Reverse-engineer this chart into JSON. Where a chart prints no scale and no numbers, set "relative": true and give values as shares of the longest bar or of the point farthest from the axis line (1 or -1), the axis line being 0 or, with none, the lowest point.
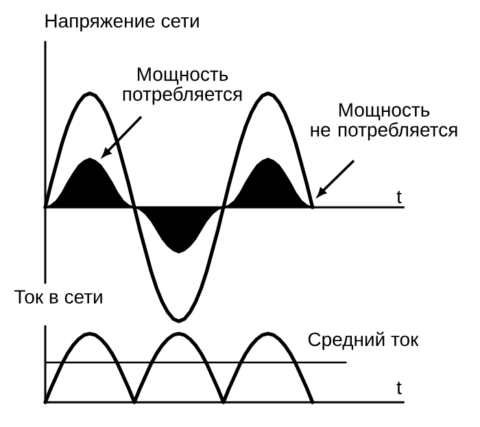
{
  "chart_data": [
    {
      "type": "line",
      "relative": true,
      "ylabel": "Напряжение сети",
      "xlabel": "t",
      "marker": "none",
      "categories": [
        null,
        null,
        null,
        null,
        null,
        null,
        null,
        null,
        null,
        null,
        null,
        null,
        null,
        null,
        null,
        null,
        null,
        null,
        null,
        null,
        null,
        null,
        null,
        null,
        null,
        null,
        null,
        null,
        null,
        null,
        null,
        null,
        null,
        null,
        null,
        null,
        null,
        null,
        null,
        null,
        null,
        null,
        null,
        null,
        null,
        null,
        null,
        null,
        null,
        null,
        null,
        null,
        null,
        null,
        null,
        null,
        null,
        null,
        null,
        null,
        null,
        null,
        null,
        null,
        null
      ],
      "series": [
        {
          "color": "#000000",
          "values": [
            0,
            0.2,
            0.38,
            0.56,
            0.71,
            0.83,
            0.92,
            0.98,
            1,
            0.98,
            0.92,
            0.83,
            0.71,
            0.56,
            0.38,
            0.2,
            0,
            -0.2,
            -0.38,
            -0.56,
            -0.71,
            -0.83,
            -0.92,
            -0.98,
            -1,
            -0.98,
            -0.92,
            -0.83,
            -0.71,
            -0.56,
            -0.38,
            -0.2,
            0,
            0.2,
            0.38,
            0.56,
            0.71,
            0.83,
            0.92,
            0.98,
            1,
            0.98,
            0.92,
            0.83,
            0.71,
            0.56,
            0.38,
            0.2,
            0,
            null,
            null,
            null,
            null,
            null,
            null,
            null,
            null,
            null,
            null,
            null,
            null,
            null,
            null,
            null,
            null
          ]
        },
        {
          "type": "area",
          "color": "#000000",
          "values": [
            0,
            0.02,
            0.06,
            0.13,
            0.22,
            0.3,
            0.37,
            0.41,
            0.43,
            0.41,
            0.37,
            0.3,
            0.22,
            0.13,
            0.06,
            0.02,
            0,
            -0.02,
            -0.06,
            -0.12,
            -0.2,
            -0.28,
            -0.34,
            -0.38,
            -0.4,
            -0.38,
            -0.34,
            -0.28,
            -0.2,
            -0.12,
            -0.06,
            -0.02,
            0,
            0.02,
            0.06,
            0.13,
            0.22,
            0.3,
            0.37,
            0.41,
            0.43,
            0.41,
            0.37,
            0.3,
            0.22,
            0.13,
            0.06,
            0.02,
            0,
            null,
            null,
            null,
            null,
            null,
            null,
            null,
            null,
            null,
            null,
            null,
            null,
            null,
            null,
            null,
            null
          ]
        }
      ],
      "annotations": [
        "Мощность потребляется",
        "Мощность не потребляется"
      ]
    },
    {
      "type": "line",
      "relative": true,
      "ylabel": "Ток в сети",
      "xlabel": "t",
      "marker": "none",
      "categories": [
        null,
        null,
        null,
        null,
        null,
        null,
        null,
        null,
        null,
        null,
        null,
        null,
        null,
        null,
        null,
        null,
        null,
        null,
        null,
        null,
        null,
        null,
        null,
        null,
        null,
        null,
        null,
        null,
        null,
        null,
        null,
        null,
        null,
        null,
        null,
        null,
        null,
        null,
        null,
        null,
        null,
        null,
        null,
        null,
        null,
        null,
        null,
        null,
        null,
        null,
        null,
        null,
        null,
        null,
        null,
        null,
        null,
        null,
        null,
        null,
        null,
        null,
        null,
        null,
        null
      ],
      "series": [
        {
          "color": "#000000",
          "values": [
            0,
            0.2,
            0.38,
            0.56,
            0.71,
            0.83,
            0.92,
            0.98,
            1,
            0.98,
            0.92,
            0.83,
            0.71,
            0.56,
            0.38,
            0.2,
            0,
            0.2,
            0.38,
            0.56,
            0.71,
            0.83,
            0.92,
            0.98,
            1,
            0.98,
            0.92,
            0.83,
            0.71,
            0.56,
            0.38,
            0.2,
            0,
            0.2,
            0.38,
            0.56,
            0.71,
            0.83,
            0.92,
            0.98,
            1,
            0.98,
            0.92,
            0.83,
            0.71,
            0.56,
            0.38,
            0.2,
            0,
            null,
            null,
            null,
            null,
            null,
            null,
            null,
            null,
            null,
            null,
            null,
            null,
            null,
            null,
            null,
            null
          ]
        },
        {
          "name": "Средний ток",
          "color": "#000000",
          "values": [
            0.58,
            0.58,
            0.58,
            0.58,
            0.58,
            0.58,
            0.58,
            0.58,
            0.58,
            0.58,
            0.58,
            0.58,
            0.58,
            0.58,
            0.58,
            0.58,
            0.58,
            0.58,
            0.58,
            0.58,
            0.58,
            0.58,
            0.58,
            0.58,
            0.58,
            0.58,
            0.58,
            0.58,
            0.58,
            0.58,
            0.58,
            0.58,
            0.58,
            0.58,
            0.58,
            0.58,
            0.58,
            0.58,
            0.58,
            0.58,
            0.58,
            0.58,
            0.58,
            0.58,
            0.58,
            0.58,
            0.58,
            0.58,
            0.58,
            0.58,
            0.58,
            0.58,
            0.58,
            0.58,
            0.58,
            null,
            null,
            null,
            null,
            null,
            null,
            null,
            null,
            null,
            null
          ]
        }
      ]
    }
  ]
}
